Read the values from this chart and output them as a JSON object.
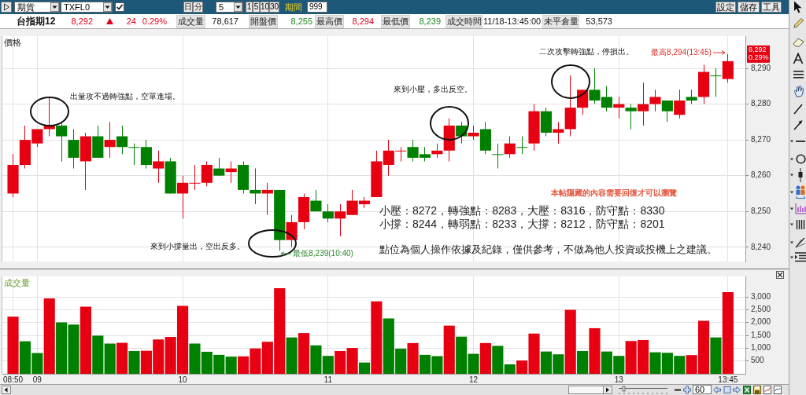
{
  "chart_data": [
    {
      "type": "other",
      "title": "台指期12",
      "annotations": [
        "期貨",
        "TXFL0",
        "日",
        "分",
        "5",
        "1",
        "5",
        "10",
        "30",
        "期間",
        "999",
        "設定",
        "儲存",
        "工具",
        "8,292",
        "24",
        "0.29%",
        "成交量",
        "78,617",
        "開盤價",
        "8,255",
        "最高價",
        "8,294",
        "最低價",
        "8,239",
        "成交時間",
        "11/18-13:45:00",
        "未平倉量",
        "53,573"
      ]
    },
    {
      "type": "candlestick",
      "ylabel": "價格",
      "x": [
        8.8333,
        8.9167,
        9,
        9.0833,
        9.1667,
        9.25,
        9.3333,
        9.4167,
        9.5,
        9.5833,
        9.6667,
        9.75,
        9.8333,
        9.9167,
        10,
        10.0833,
        10.1667,
        10.25,
        10.3333,
        10.4167,
        10.5,
        10.5833,
        10.6667,
        10.75,
        10.8333,
        10.9167,
        11,
        11.0833,
        11.1667,
        11.25,
        11.3333,
        11.4167,
        11.5,
        11.5833,
        11.6667,
        11.75,
        11.8333,
        11.9167,
        12,
        12.0833,
        12.1667,
        12.25,
        12.3333,
        12.4167,
        12.5,
        12.5833,
        12.6667,
        12.75,
        12.8333,
        12.9167,
        13,
        13.0833,
        13.1667,
        13.25,
        13.3333,
        13.4167,
        13.5,
        13.5833,
        13.6667,
        13.75
      ],
      "ohlc": [
        [
          8255,
          8266,
          8254,
          8263
        ],
        [
          8263,
          8274,
          8262,
          8270
        ],
        [
          8269,
          8273,
          8268,
          8273
        ],
        [
          8273,
          8282,
          8271,
          8274
        ],
        [
          8274,
          8275,
          8264,
          8271
        ],
        [
          8270,
          8273,
          8262,
          8265
        ],
        [
          8264,
          8272,
          8256,
          8271
        ],
        [
          8271,
          8274,
          8265,
          8265
        ],
        [
          8268,
          8275,
          8265,
          8270
        ],
        [
          8271,
          8274,
          8266,
          8268
        ],
        [
          8268,
          8269,
          8263,
          8268
        ],
        [
          8268,
          8270,
          8262,
          8263
        ],
        [
          8262,
          8267,
          8258,
          8264
        ],
        [
          8264,
          8265,
          8255,
          8255
        ],
        [
          8255,
          8260,
          8248,
          8258
        ],
        [
          8258,
          8263,
          8256,
          8258
        ],
        [
          8258,
          8264,
          8257,
          8263
        ],
        [
          8262,
          8265,
          8260,
          8260
        ],
        [
          8261,
          8264,
          8258,
          8262
        ],
        [
          8263,
          8264,
          8255,
          8256
        ],
        [
          8256,
          8262,
          8252,
          8255
        ],
        [
          8255,
          8258,
          8249,
          8256
        ],
        [
          8256,
          8256,
          8239,
          8242
        ],
        [
          8242,
          8249,
          8240,
          8247
        ],
        [
          8247,
          8255,
          8245,
          8254
        ],
        [
          8253,
          8256,
          8250,
          8250
        ],
        [
          8250,
          8252,
          8247,
          8248
        ],
        [
          8248,
          8252,
          8243,
          8250
        ],
        [
          8249,
          8256,
          8249,
          8253
        ],
        [
          8252,
          8254,
          8251,
          8253
        ],
        [
          8254,
          8267,
          8254,
          8264
        ],
        [
          8263,
          8270,
          8260,
          8267
        ],
        [
          8267,
          8268,
          8264,
          8267
        ],
        [
          8268,
          8270,
          8264,
          8265
        ],
        [
          8266,
          8268,
          8264,
          8265
        ],
        [
          8266,
          8269,
          8265,
          8267
        ],
        [
          8267,
          8276,
          8264,
          8274
        ],
        [
          8274,
          8275,
          8269,
          8271
        ],
        [
          8271,
          8274,
          8270,
          8272
        ],
        [
          8273,
          8275,
          8266,
          8267
        ],
        [
          8266,
          8269,
          8262,
          8266
        ],
        [
          8266,
          8271,
          8265,
          8269
        ],
        [
          8268,
          8271,
          8266,
          8268
        ],
        [
          8269,
          8280,
          8267,
          8278
        ],
        [
          8278,
          8279,
          8271,
          8272
        ],
        [
          8272,
          8275,
          8269,
          8273
        ],
        [
          8273,
          8288,
          8271,
          8279
        ],
        [
          8279,
          8284,
          8277,
          8284
        ],
        [
          8284,
          8290,
          8280,
          8281
        ],
        [
          8282,
          8285,
          8278,
          8279
        ],
        [
          8279,
          8282,
          8276,
          8280
        ],
        [
          8279,
          8280,
          8273,
          8278
        ],
        [
          8278,
          8286,
          8274,
          8280
        ],
        [
          8280,
          8284,
          8278,
          8282
        ],
        [
          8281,
          8281,
          8275,
          8278
        ],
        [
          8277,
          8284,
          8276,
          8281
        ],
        [
          8282,
          8284,
          8280,
          8281
        ],
        [
          8282,
          8291,
          8280,
          8289
        ],
        [
          8288,
          8290,
          8282,
          8288
        ],
        [
          8287,
          8294,
          8286,
          8292
        ]
      ],
      "colors": [
        "#e60012",
        "#e60012",
        "#e60012",
        "#e60012",
        "#008000",
        "#008000",
        "#e60012",
        "#008000",
        "#e60012",
        "#008000",
        "#008000",
        "#008000",
        "#e60012",
        "#008000",
        "#e60012",
        "#e60012",
        "#e60012",
        "#008000",
        "#e60012",
        "#008000",
        "#008000",
        "#e60012",
        "#008000",
        "#e60012",
        "#e60012",
        "#008000",
        "#008000",
        "#e60012",
        "#e60012",
        "#e60012",
        "#e60012",
        "#e60012",
        "#e60012",
        "#008000",
        "#008000",
        "#e60012",
        "#e60012",
        "#008000",
        "#e60012",
        "#008000",
        "#008000",
        "#e60012",
        "#008000",
        "#e60012",
        "#008000",
        "#e60012",
        "#e60012",
        "#e60012",
        "#008000",
        "#008000",
        "#e60012",
        "#008000",
        "#e60012",
        "#e60012",
        "#008000",
        "#e60012",
        "#008000",
        "#e60012",
        "#008000",
        "#e60012"
      ],
      "xlim": [
        8.76,
        13.87
      ],
      "xticks": [
        8.8333,
        9,
        10,
        11,
        12,
        13,
        13.75
      ],
      "ylim": [
        8236,
        8299
      ],
      "yticks": [
        {
          "value": 8240,
          "label": "8,240"
        },
        {
          "value": 8250,
          "label": "8,250"
        },
        {
          "value": 8260,
          "label": "8,260"
        },
        {
          "value": 8270,
          "label": "8,270"
        },
        {
          "value": 8280,
          "label": "8,280"
        },
        {
          "value": 8290,
          "label": "8,290"
        }
      ],
      "grid": true,
      "tick_labels": "y",
      "annotations": [
        {
          "text": "出量攻不過轉強點，空單進場。",
          "x": 9.0833,
          "y": 8278
        },
        "來到小撐量出，空出反多。",
        "來到小壓，多出反空。",
        "二次攻擊轉強點，停損出。",
        {
          "text": "最高8,294(13:45)",
          "x": 13.75,
          "y": 8294
        },
        {
          "text": "最低8,239(10:40)",
          "x": 10.6667,
          "y": 8239
        },
        "8,292",
        "0.29%",
        "本帖隱藏的內容需要回復才可以瀏覽",
        "小壓：8272，轉強點：8283，大壓：8316，防守點：8330",
        "小撐：8244，轉弱點：8233，大撐：8212，防守點：8201",
        "點位為個人操作依據及紀錄，僅供參考，不做為他人投資或投機上之建議。"
      ]
    },
    {
      "type": "bar",
      "ylabel": "成交量",
      "x": [
        8.8333,
        8.9167,
        9,
        9.0833,
        9.1667,
        9.25,
        9.3333,
        9.4167,
        9.5,
        9.5833,
        9.6667,
        9.75,
        9.8333,
        9.9167,
        10,
        10.0833,
        10.1667,
        10.25,
        10.3333,
        10.4167,
        10.5,
        10.5833,
        10.6667,
        10.75,
        10.8333,
        10.9167,
        11,
        11.0833,
        11.1667,
        11.25,
        11.3333,
        11.4167,
        11.5,
        11.5833,
        11.6667,
        11.75,
        11.8333,
        11.9167,
        12,
        12.0833,
        12.1667,
        12.25,
        12.3333,
        12.4167,
        12.5,
        12.5833,
        12.6667,
        12.75,
        12.8333,
        12.9167,
        13,
        13.0833,
        13.1667,
        13.25,
        13.3333,
        13.4167,
        13.5,
        13.5833,
        13.6667,
        13.75
      ],
      "values": [
        2230,
        1270,
        810,
        2940,
        2010,
        1920,
        2620,
        1490,
        1180,
        1210,
        890,
        900,
        1340,
        1440,
        2650,
        1180,
        860,
        740,
        670,
        680,
        990,
        1250,
        3340,
        1420,
        1590,
        1110,
        700,
        890,
        1010,
        440,
        2830,
        2160,
        980,
        1200,
        740,
        690,
        1880,
        1450,
        780,
        1200,
        1090,
        370,
        520,
        1570,
        870,
        760,
        2500,
        890,
        1780,
        870,
        700,
        1280,
        1320,
        840,
        820,
        700,
        730,
        2070,
        1420,
        3190
      ],
      "colors": [
        "#e60012",
        "#008000",
        "#008000",
        "#e60012",
        "#008000",
        "#008000",
        "#e60012",
        "#008000",
        "#008000",
        "#e60012",
        "#008000",
        "#e60012",
        "#e60012",
        "#e60012",
        "#e60012",
        "#008000",
        "#008000",
        "#008000",
        "#008000",
        "#e60012",
        "#e60012",
        "#e60012",
        "#e60012",
        "#008000",
        "#e60012",
        "#008000",
        "#008000",
        "#e60012",
        "#e60012",
        "#008000",
        "#e60012",
        "#008000",
        "#008000",
        "#e60012",
        "#008000",
        "#008000",
        "#e60012",
        "#008000",
        "#008000",
        "#e60012",
        "#008000",
        "#008000",
        "#e60012",
        "#e60012",
        "#008000",
        "#008000",
        "#e60012",
        "#008000",
        "#e60012",
        "#008000",
        "#008000",
        "#e60012",
        "#e60012",
        "#008000",
        "#008000",
        "#008000",
        "#e60012",
        "#e60012",
        "#008000",
        "#e60012"
      ],
      "xlim": [
        8.76,
        13.87
      ],
      "xticks": [
        {
          "value": 8.8333,
          "label": "08:50"
        },
        {
          "value": 9,
          "label": "09"
        },
        10,
        11,
        12,
        13,
        {
          "value": 13.75,
          "label": "13:45"
        }
      ],
      "ylim": [
        0,
        3800
      ],
      "yticks": [
        500,
        {
          "value": 1000,
          "label": "1,000"
        },
        {
          "value": 1500,
          "label": "1,500"
        },
        {
          "value": 2000,
          "label": "2,000"
        },
        {
          "value": 2500,
          "label": "2,500"
        },
        {
          "value": 3000,
          "label": "3,000"
        }
      ],
      "grid": true,
      "annotations": [
        "60"
      ]
    }
  ]
}
